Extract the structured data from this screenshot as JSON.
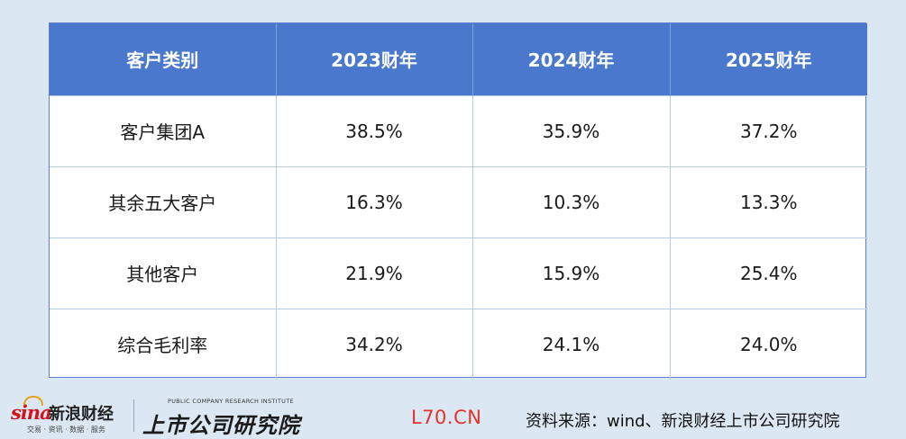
{
  "table": {
    "headers": [
      "客户类别",
      "2023财年",
      "2024财年",
      "2025财年"
    ],
    "rows": [
      [
        "客户集团A",
        "38.5%",
        "35.9%",
        "37.2%"
      ],
      [
        "其余五大客户",
        "16.3%",
        "10.3%",
        "13.3%"
      ],
      [
        "其他客户",
        "21.9%",
        "15.9%",
        "25.4%"
      ],
      [
        "综合毛利率",
        "34.2%",
        "24.1%",
        "24.0%"
      ]
    ]
  },
  "footer": {
    "sina_logo_mark": "sina",
    "sina_logo_name": "新浪财经",
    "sina_logo_tagline": "交易 · 资讯 · 数据 · 服务",
    "institute_name_en": "PUBLIC COMPANY RESEARCH INSTITUTE",
    "institute_name_cn": "上市公司研究院",
    "watermark": "L70.CN",
    "source": "资料来源：wind、新浪财经上市公司研究院"
  },
  "colors": {
    "background": "#dbe8f4",
    "header_bg": "#4a78cd",
    "watermark": "#e0342c",
    "sina_red": "#d4141b"
  }
}
